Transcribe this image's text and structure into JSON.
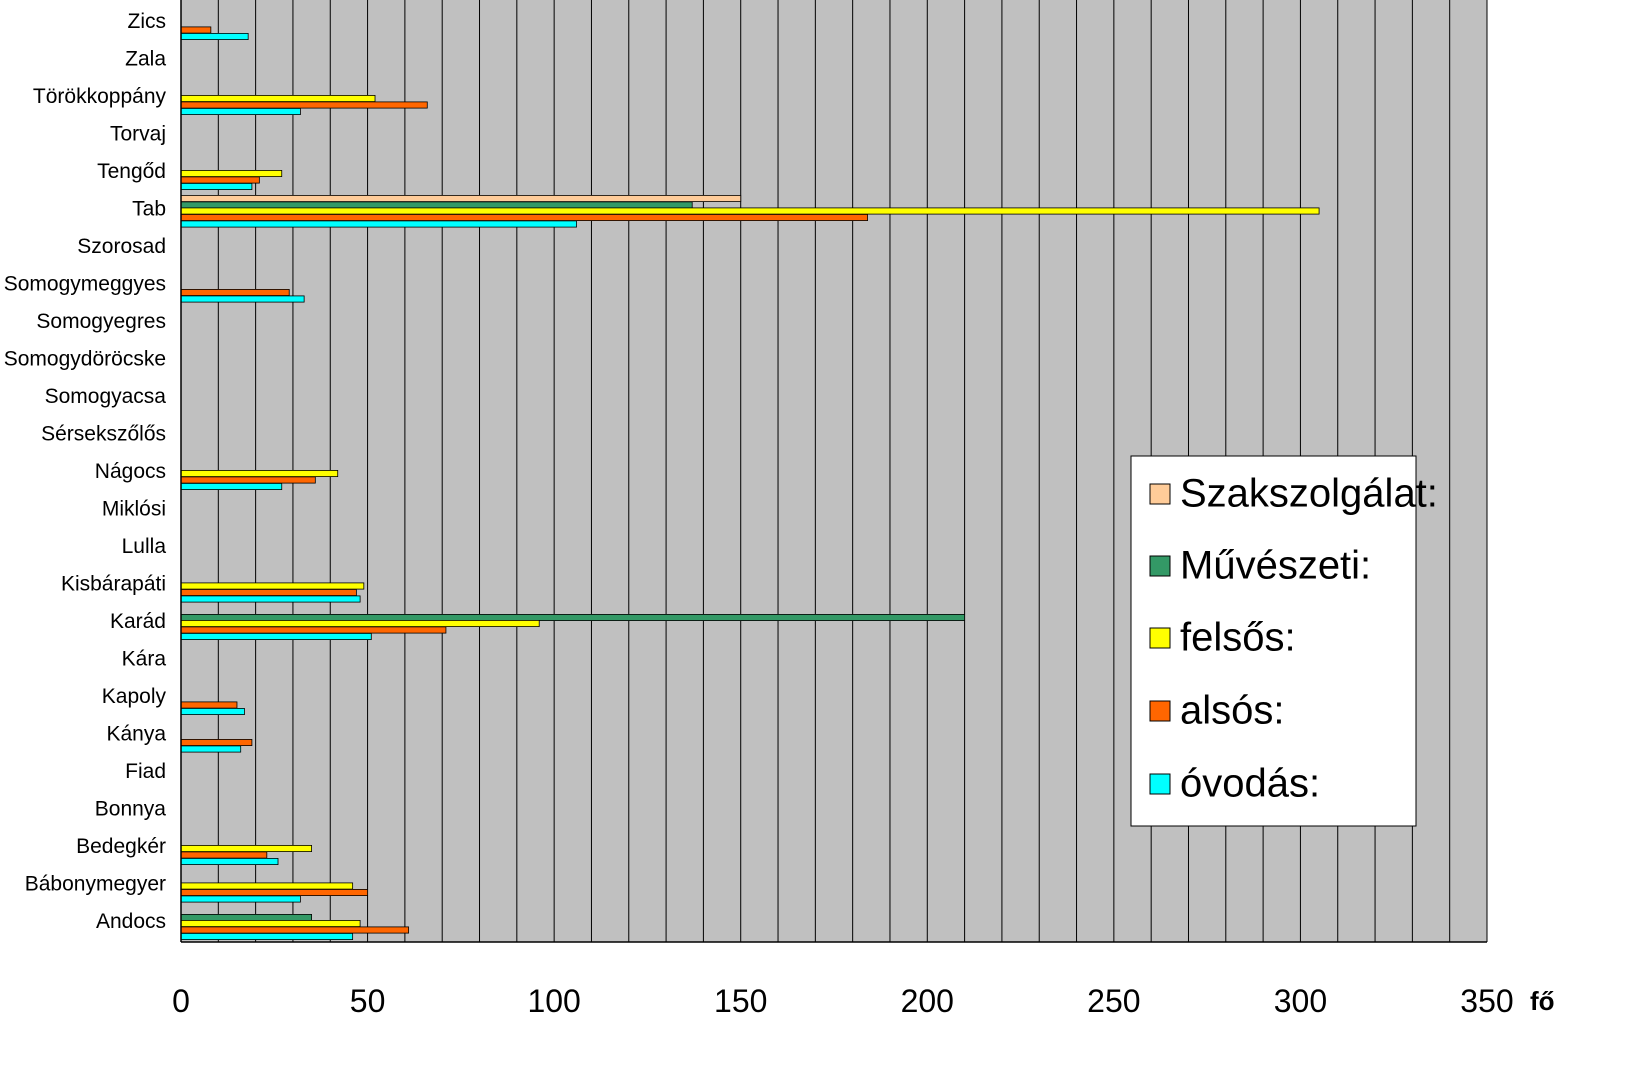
{
  "chart_data": {
    "type": "bar",
    "orientation": "horizontal",
    "xlabel": "fő",
    "xlim": [
      0,
      350
    ],
    "x_ticks": [
      "0",
      "50",
      "100",
      "150",
      "200",
      "250",
      "300",
      "350"
    ],
    "grid": true,
    "legend_position": "right",
    "categories": [
      "Andocs",
      "Bábonymegyer",
      "Bedegkér",
      "Bonnya",
      "Fiad",
      "Kánya",
      "Kapoly",
      "Kára",
      "Karád",
      "Kisbárapáti",
      "Lulla",
      "Miklósi",
      "Nágocs",
      "Sérsekszőlős",
      "Somogyacsa",
      "Somogydöröcske",
      "Somogyegres",
      "Somogymeggyes",
      "Szorosad",
      "Tab",
      "Tengőd",
      "Torvaj",
      "Törökkoppány",
      "Zala",
      "Zics"
    ],
    "series": [
      {
        "name": "Szakszolgálat:",
        "color": "#FFCC99",
        "values": [
          0,
          0,
          0,
          0,
          0,
          0,
          0,
          0,
          0,
          0,
          0,
          0,
          0,
          0,
          0,
          0,
          0,
          0,
          0,
          150,
          0,
          0,
          0,
          0,
          0
        ]
      },
      {
        "name": "Művészeti:",
        "color": "#339966",
        "values": [
          35,
          0,
          0,
          0,
          0,
          0,
          0,
          0,
          210,
          0,
          0,
          0,
          0,
          0,
          0,
          0,
          0,
          0,
          0,
          137,
          0,
          0,
          0,
          0,
          0
        ]
      },
      {
        "name": "felsős:",
        "color": "#FFFF00",
        "values": [
          48,
          46,
          35,
          0,
          0,
          0,
          0,
          0,
          96,
          49,
          0,
          0,
          42,
          0,
          0,
          0,
          0,
          0,
          0,
          305,
          27,
          0,
          52,
          0,
          0
        ]
      },
      {
        "name": "alsós:",
        "color": "#FF6600",
        "values": [
          61,
          50,
          23,
          0,
          0,
          19,
          15,
          0,
          71,
          47,
          0,
          0,
          36,
          0,
          0,
          0,
          0,
          29,
          0,
          184,
          21,
          0,
          66,
          0,
          8
        ]
      },
      {
        "name": "óvodás:",
        "color": "#00FFFF",
        "values": [
          46,
          32,
          26,
          0,
          0,
          16,
          17,
          0,
          51,
          48,
          0,
          0,
          27,
          0,
          0,
          0,
          0,
          33,
          0,
          106,
          19,
          0,
          32,
          0,
          18
        ]
      }
    ]
  }
}
